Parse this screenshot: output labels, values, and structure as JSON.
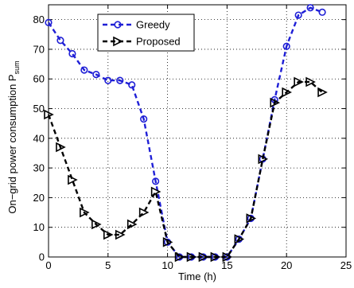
{
  "chart_data": {
    "type": "line",
    "xlabel": "Time (h)",
    "ylabel": "On−grid power consumption P",
    "ylabel_sub": "sum",
    "xlim": [
      0,
      25
    ],
    "ylim": [
      0,
      85
    ],
    "xticks": [
      0,
      5,
      10,
      15,
      20,
      25
    ],
    "yticks": [
      0,
      10,
      20,
      30,
      40,
      50,
      60,
      70,
      80
    ],
    "grid": true,
    "legend_position": "top-left",
    "series": [
      {
        "name": "Greedy",
        "color": "#1f1fd6",
        "marker": "circle",
        "line_style": "dashed",
        "x": [
          0,
          1,
          2,
          3,
          4,
          5,
          6,
          7,
          8,
          9,
          10,
          11,
          12,
          13,
          14,
          15,
          16,
          17,
          18,
          19,
          20,
          21,
          22,
          23,
          24
        ],
        "y": [
          79,
          73,
          68.5,
          63,
          61.5,
          59.5,
          59.5,
          58,
          46.5,
          25.5,
          5,
          0,
          0,
          0,
          0,
          0,
          6,
          13,
          33,
          53,
          71,
          81.5,
          84,
          82.5,
          null
        ]
      },
      {
        "name": "Proposed",
        "color": "#000000",
        "marker": "triangle-right",
        "line_style": "dashed",
        "x": [
          0,
          1,
          2,
          3,
          4,
          5,
          6,
          7,
          8,
          9,
          10,
          11,
          12,
          13,
          14,
          15,
          16,
          17,
          18,
          19,
          20,
          21,
          22,
          23,
          24
        ],
        "y": [
          48,
          37,
          26,
          15,
          11,
          7.5,
          7.5,
          11,
          15,
          22,
          5,
          0,
          0,
          0,
          0,
          0,
          6,
          13,
          33,
          52,
          55.5,
          59,
          59,
          55.5,
          null
        ]
      }
    ]
  }
}
